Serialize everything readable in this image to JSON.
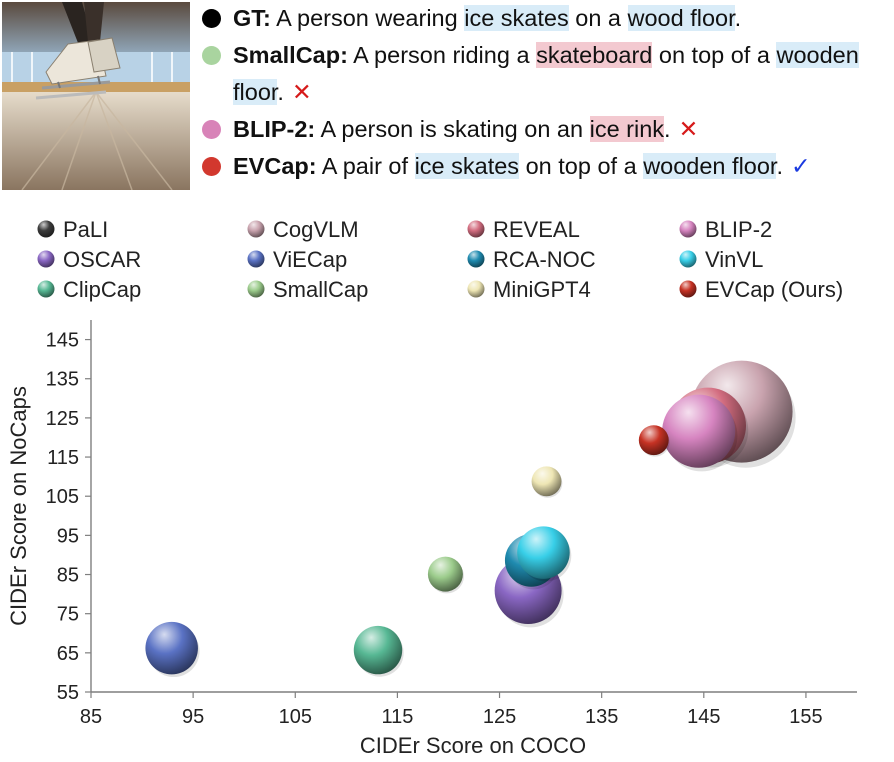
{
  "captions": [
    {
      "label": "GT:",
      "color": "#000000",
      "segments": [
        {
          "t": " A person wearing ",
          "h": ""
        },
        {
          "t": "ice skates",
          "h": "blue"
        },
        {
          "t": " on a ",
          "h": ""
        },
        {
          "t": "wood floor",
          "h": "blue"
        },
        {
          "t": ".",
          "h": ""
        }
      ],
      "mark": ""
    },
    {
      "label": "SmallCap:",
      "color": "#a9d49f",
      "segments": [
        {
          "t": " A person riding a ",
          "h": ""
        },
        {
          "t": "skateboard",
          "h": "red"
        },
        {
          "t": " on top of a ",
          "h": ""
        },
        {
          "t": "wooden floor",
          "h": "blue"
        },
        {
          "t": ".",
          "h": ""
        }
      ],
      "mark": "✕",
      "mark_type": "x"
    },
    {
      "label": "BLIP-2:",
      "color": "#d883b8",
      "segments": [
        {
          "t": " A person is skating on an ",
          "h": ""
        },
        {
          "t": "ice rink",
          "h": "red"
        },
        {
          "t": ".",
          "h": ""
        }
      ],
      "mark": "✕",
      "mark_type": "x"
    },
    {
      "label": "EVCap:",
      "color": "#d2382e",
      "segments": [
        {
          "t": " A pair of ",
          "h": ""
        },
        {
          "t": "ice skates",
          "h": "blue"
        },
        {
          "t": " on top of a ",
          "h": ""
        },
        {
          "t": "wooden floor",
          "h": "blue"
        },
        {
          "t": ".",
          "h": ""
        }
      ],
      "mark": "✓",
      "mark_type": "v"
    }
  ],
  "chart_data": {
    "type": "scatter",
    "subtype": "bubble",
    "xlabel": "CIDEr Score on COCO",
    "ylabel": "CIDEr Score on NoCaps",
    "xlim": [
      85,
      160
    ],
    "ylim": [
      55,
      150
    ],
    "xticks": [
      85,
      95,
      105,
      115,
      125,
      135,
      145,
      155
    ],
    "yticks": [
      55,
      65,
      75,
      85,
      95,
      105,
      115,
      125,
      135,
      145
    ],
    "legend_position": "top",
    "series": [
      {
        "name": "PaLI",
        "x": 149.1,
        "y": 127.0,
        "size": 10,
        "color": "#3c3c3c",
        "in_plot": false
      },
      {
        "name": "CogVLM",
        "x": 148.7,
        "y": 126.6,
        "size": 9.9,
        "color": "#c9a3ae"
      },
      {
        "name": "REVEAL",
        "x": 145.4,
        "y": 123.0,
        "size": 7.4,
        "color": "#d36d80"
      },
      {
        "name": "BLIP-2",
        "x": 144.5,
        "y": 121.6,
        "size": 7.1,
        "color": "#d684c0"
      },
      {
        "name": "OSCAR",
        "x": 127.8,
        "y": 80.9,
        "size": 6.5,
        "color": "#8a67c4"
      },
      {
        "name": "ViECap",
        "x": 92.9,
        "y": 66.2,
        "size": 5.1,
        "color": "#5a72c4"
      },
      {
        "name": "RCA-NOC",
        "x": 128.1,
        "y": 88.6,
        "size": 5.1,
        "color": "#1f8bb0"
      },
      {
        "name": "VinVL",
        "x": 129.3,
        "y": 90.6,
        "size": 5.1,
        "color": "#38cfe8"
      },
      {
        "name": "ClipCap",
        "x": 113.1,
        "y": 65.7,
        "size": 4.7,
        "color": "#57b894"
      },
      {
        "name": "SmallCap",
        "x": 119.7,
        "y": 85.1,
        "size": 3.4,
        "color": "#9ccc8c"
      },
      {
        "name": "MiniGPT4",
        "x": 129.6,
        "y": 108.8,
        "size": 2.9,
        "color": "#eee6b4"
      },
      {
        "name": "EVCap (Ours)",
        "x": 140.1,
        "y": 119.3,
        "size": 2.9,
        "color": "#c63224"
      }
    ]
  }
}
